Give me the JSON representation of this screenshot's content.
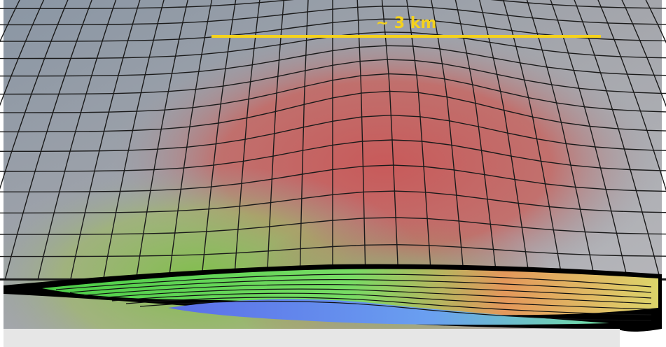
{
  "scale_bar": {
    "label": "~ 3 km"
  }
}
